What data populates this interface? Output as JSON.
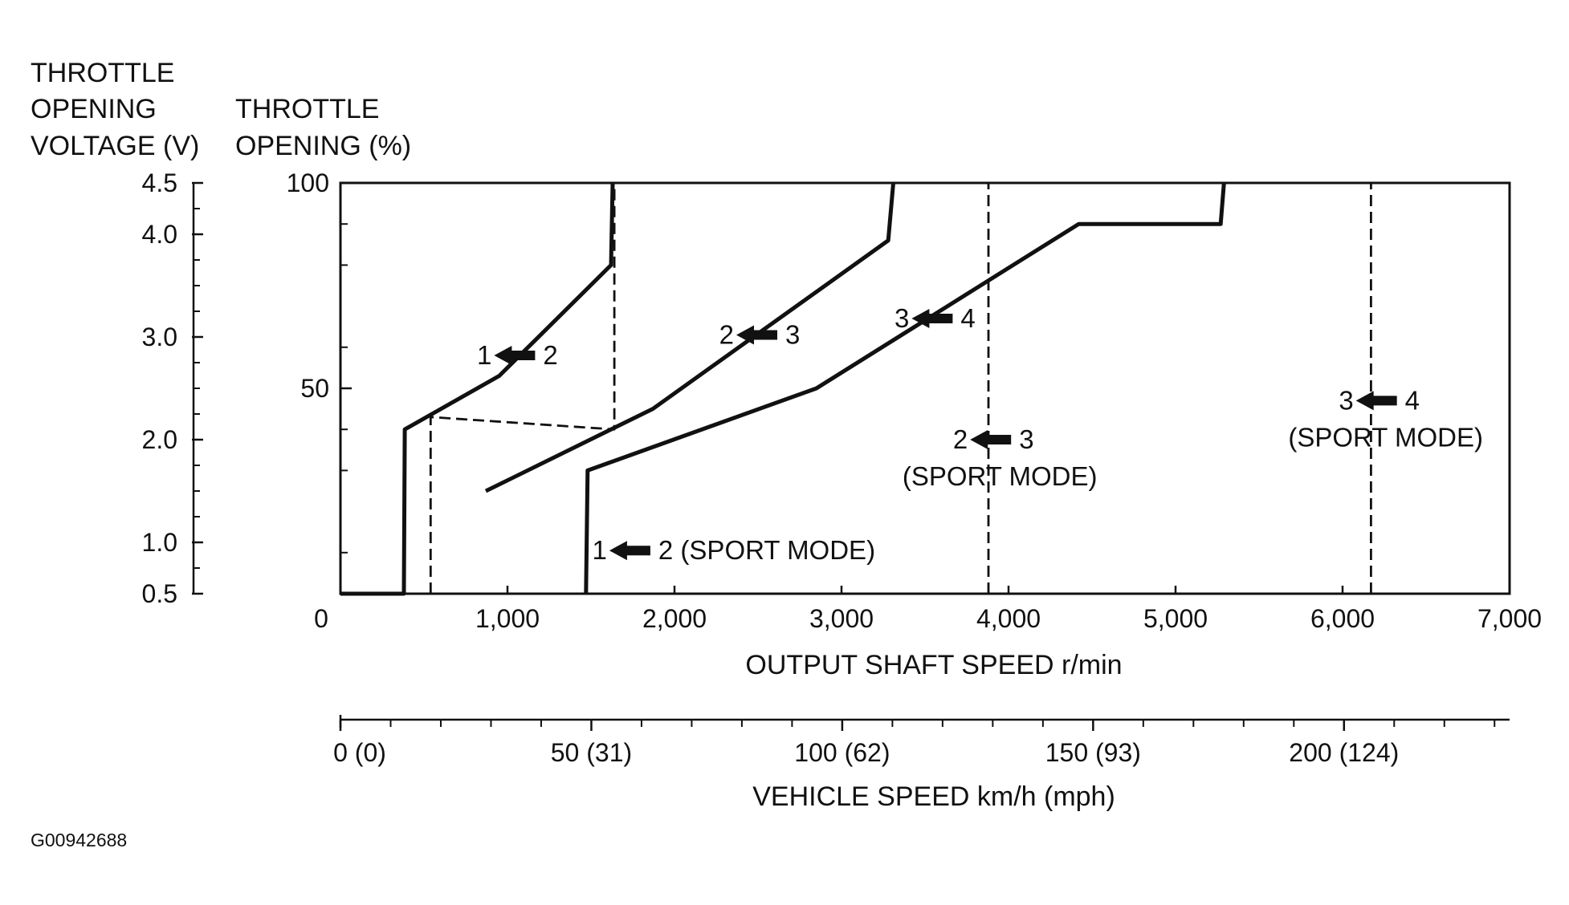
{
  "chart_data": {
    "type": "line",
    "left_axis_title": [
      "THROTTLE",
      "OPENING",
      "VOLTAGE (V)"
    ],
    "left_ticks": [
      {
        "value": 4.5,
        "pct": 100,
        "label": "4.5"
      },
      {
        "value": 4.0,
        "pct": 87.5,
        "label": "4.0"
      },
      {
        "value": 3.0,
        "pct": 62.5,
        "label": "3.0"
      },
      {
        "value": 2.0,
        "pct": 37.5,
        "label": "2.0"
      },
      {
        "value": 1.0,
        "pct": 12.5,
        "label": "1.0"
      },
      {
        "value": 0.5,
        "pct": 0,
        "label": "0.5"
      }
    ],
    "left_minor_ticks_pct": [
      93.75,
      81.25,
      75,
      68.75,
      56.25,
      50,
      43.75,
      31.25,
      25,
      18.75,
      6.25
    ],
    "y_axis_title": [
      "THROTTLE",
      "OPENING (%)"
    ],
    "y_ticks": [
      {
        "value": 100,
        "label": "100"
      },
      {
        "value": 50,
        "label": "50"
      }
    ],
    "y_minor_ticks": [
      90,
      80,
      60,
      40,
      30,
      10
    ],
    "ylim": [
      0,
      100
    ],
    "xlabel": "OUTPUT SHAFT SPEED r/min",
    "xlim": [
      0,
      7000
    ],
    "x_ticks": [
      {
        "value": 0,
        "label": "0"
      },
      {
        "value": 1000,
        "label": "1,000"
      },
      {
        "value": 2000,
        "label": "2,000"
      },
      {
        "value": 3000,
        "label": "3,000"
      },
      {
        "value": 4000,
        "label": "4,000"
      },
      {
        "value": 5000,
        "label": "5,000"
      },
      {
        "value": 6000,
        "label": "6,000"
      },
      {
        "value": 7000,
        "label": "7,000"
      }
    ],
    "series": [
      {
        "label": "1 → 2",
        "style": "solid",
        "points": [
          [
            0,
            0
          ],
          [
            380,
            0
          ],
          [
            385,
            40
          ],
          [
            950,
            53
          ],
          [
            1620,
            80
          ],
          [
            1630,
            100
          ]
        ]
      },
      {
        "label": "2 → 3",
        "style": "solid",
        "points": [
          [
            870,
            25
          ],
          [
            1870,
            45
          ],
          [
            3280,
            86
          ],
          [
            3310,
            100
          ]
        ]
      },
      {
        "label": "3 → 4",
        "style": "solid",
        "points": [
          [
            1470,
            0
          ],
          [
            1480,
            30
          ],
          [
            2850,
            50
          ],
          [
            4420,
            90
          ],
          [
            5270,
            90
          ],
          [
            5290,
            100
          ]
        ]
      }
    ],
    "sport_mode_lines": [
      {
        "label": "1 → 2",
        "style": "dashed",
        "points": [
          [
            540,
            0
          ],
          [
            540,
            43
          ],
          [
            1640,
            40
          ],
          [
            1640,
            100
          ]
        ]
      },
      {
        "label": "2 → 3",
        "style": "dashed",
        "points": [
          [
            3880,
            0
          ],
          [
            3880,
            100
          ]
        ]
      },
      {
        "label": "3 → 4",
        "style": "dashed",
        "points": [
          [
            6170,
            0
          ],
          [
            6170,
            100
          ]
        ]
      }
    ],
    "annotations": [
      {
        "from": "1",
        "to": "2",
        "x": 1050,
        "y": 58,
        "mode": ""
      },
      {
        "from": "2",
        "to": "3",
        "x": 2500,
        "y": 63,
        "mode": ""
      },
      {
        "from": "3",
        "to": "4",
        "x": 3550,
        "y": 67,
        "mode": ""
      },
      {
        "from": "1",
        "to": "2",
        "x": 1740,
        "y": 10.5,
        "mode": "(SPORT MODE)"
      },
      {
        "from": "2",
        "to": "3",
        "x": 3900,
        "y": 37.5,
        "mode": "(SPORT MODE)"
      },
      {
        "from": "3",
        "to": "4",
        "x": 6210,
        "y": 47,
        "mode": "(SPORT MODE)"
      }
    ],
    "secondary_xlabel": "VEHICLE SPEED km/h (mph)",
    "secondary_x_ticks": [
      {
        "kmh": 0,
        "label": "0 (0)"
      },
      {
        "kmh": 50,
        "label": "50 (31)"
      },
      {
        "kmh": 100,
        "label": "100 (62)"
      },
      {
        "kmh": 150,
        "label": "150 (93)"
      },
      {
        "kmh": 200,
        "label": "200 (124)"
      }
    ],
    "secondary_minor_ticks_kmh": [
      10,
      20,
      30,
      40,
      60,
      70,
      80,
      90,
      110,
      120,
      130,
      140,
      160,
      170,
      180,
      190,
      210,
      220,
      230
    ]
  },
  "figure_code": "G00942688"
}
